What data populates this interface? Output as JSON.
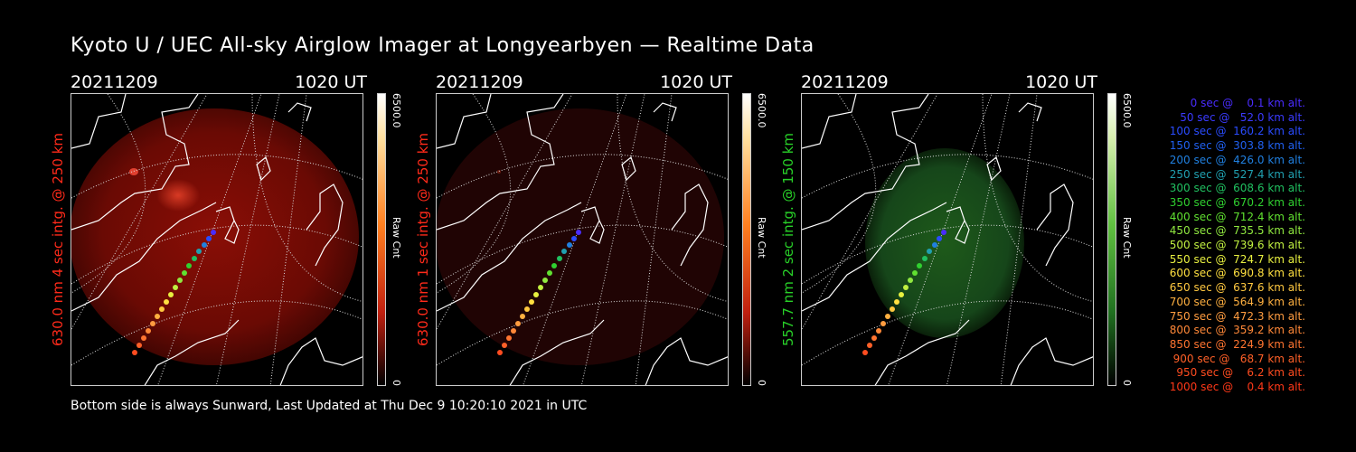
{
  "title": "Kyoto U / UEC All-sky Airglow Imager at Longyearbyen — Realtime Data",
  "panels": [
    {
      "date": "20211209",
      "time": "1020 UT",
      "label": "630.0 nm 4 sec intg. @ 250 km",
      "label_color": "#ff2a1a",
      "glow": "red-strong",
      "cbar_max": "6500.0",
      "cbar_min": "0",
      "cbar_unit": "Raw Cnt"
    },
    {
      "date": "20211209",
      "time": "1020 UT",
      "label": "630.0 nm 1 sec intg. @ 250 km",
      "label_color": "#ff2a1a",
      "glow": "red-weak",
      "cbar_max": "6500.0",
      "cbar_min": "0",
      "cbar_unit": "Raw Cnt"
    },
    {
      "date": "20211209",
      "time": "1020 UT",
      "label": "557.7 nm 2 sec intg. @ 150 km",
      "label_color": "#28d028",
      "glow": "green",
      "cbar_max": "6500.0",
      "cbar_min": "0",
      "cbar_unit": "Raw Cnt"
    }
  ],
  "legend": [
    {
      "text": "   0 sec @    0.1 km alt.",
      "color": "#4a2cff"
    },
    {
      "text": "  50 sec @   52.0 km alt.",
      "color": "#3a3aff"
    },
    {
      "text": " 100 sec @  160.2 km alt.",
      "color": "#2a4cff"
    },
    {
      "text": " 150 sec @  303.8 km alt.",
      "color": "#2060f0"
    },
    {
      "text": " 200 sec @  426.0 km alt.",
      "color": "#2080e0"
    },
    {
      "text": " 250 sec @  527.4 km alt.",
      "color": "#20a0b0"
    },
    {
      "text": " 300 sec @  608.6 km alt.",
      "color": "#20c060"
    },
    {
      "text": " 350 sec @  670.2 km alt.",
      "color": "#30d030"
    },
    {
      "text": " 400 sec @  712.4 km alt.",
      "color": "#60e030"
    },
    {
      "text": " 450 sec @  735.5 km alt.",
      "color": "#90e840"
    },
    {
      "text": " 500 sec @  739.6 km alt.",
      "color": "#c0f040"
    },
    {
      "text": " 550 sec @  724.7 km alt.",
      "color": "#e8f040"
    },
    {
      "text": " 600 sec @  690.8 km alt.",
      "color": "#ffe040"
    },
    {
      "text": " 650 sec @  637.6 km alt.",
      "color": "#ffc840"
    },
    {
      "text": " 700 sec @  564.9 km alt.",
      "color": "#ffb040"
    },
    {
      "text": " 750 sec @  472.3 km alt.",
      "color": "#ff9c40"
    },
    {
      "text": " 800 sec @  359.2 km alt.",
      "color": "#ff8838"
    },
    {
      "text": " 850 sec @  224.9 km alt.",
      "color": "#ff7430"
    },
    {
      "text": " 900 sec @   68.7 km alt.",
      "color": "#ff6028"
    },
    {
      "text": " 950 sec @    6.2 km alt.",
      "color": "#ff4c20"
    },
    {
      "text": "1000 sec @    0.4 km alt.",
      "color": "#ff3818"
    }
  ],
  "footer": "Bottom side is always Sunward, Last Updated at Thu Dec  9 10:20:10 2021 in UTC"
}
